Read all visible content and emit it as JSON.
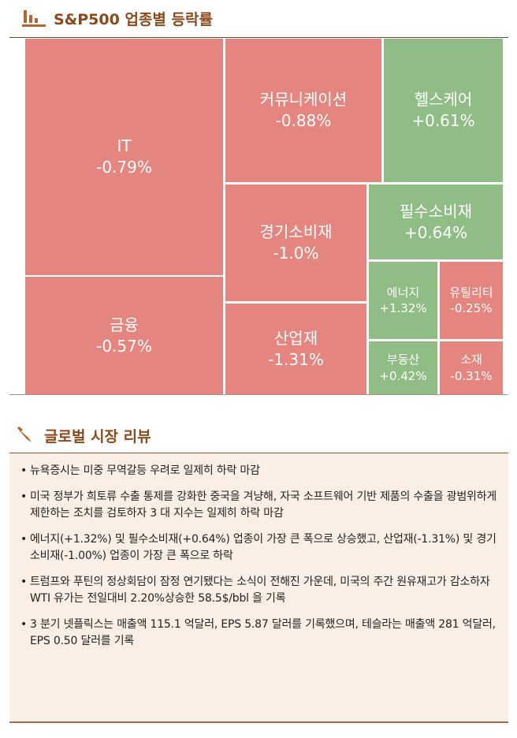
{
  "header": {
    "title": "S&P500 업종별 등락률",
    "icon": "bar-chart-icon"
  },
  "colors": {
    "down": "#e4857f",
    "up": "#8fbd85",
    "accent": "#9b5527"
  },
  "chart_data": {
    "type": "treemap",
    "title": "S&P500 업종별 등락률",
    "categories": [
      "IT",
      "금융",
      "커뮤니케이션",
      "헬스케어",
      "경기소비재",
      "산업재",
      "필수소비재",
      "에너지",
      "유틸리티",
      "부동산",
      "소재"
    ],
    "labels": [
      "-0.79%",
      "-0.57%",
      "-0.88%",
      "+0.61%",
      "-1.0%",
      "-1.31%",
      "+0.64%",
      "+1.32%",
      "-0.25%",
      "+0.42%",
      "-0.31%"
    ],
    "values": [
      -0.79,
      -0.57,
      -0.88,
      0.61,
      -1.0,
      -1.31,
      0.64,
      1.32,
      -0.25,
      0.42,
      -0.31
    ]
  },
  "review": {
    "title": "글로벌 시장 리뷰",
    "icon": "pen-icon",
    "items": [
      "뉴욕증시는 미중 무역갈등 우려로 일제히 하락 마감",
      "미국 정부가 희토류 수출 통제를 강화한 중국을 겨냥해, 자국 소프트웨어 기반 제품의 수출을 광범위하게 제한하는 조치를 검토하자 3 대 지수는 일제히 하락 마감",
      "에너지(+1.32%) 및 필수소비재(+0.64%) 업종이 가장 큰 폭으로 상승했고, 산업재(-1.31%) 및 경기소비재(-1.00%) 업종이 가장 큰 폭으로 하락",
      "트럼프와 푸틴의 정상회담이 잠정 연기됐다는 소식이 전해진 가운데, 미국의 주간 원유재고가 감소하자 WTI 유가는 전일대비 2.20%상승한 58.5$/bbl 을 기록",
      "3 분기 넷플릭스는 매출액 115.1 억달러, EPS 5.87 달러를 기록했으며, 테슬라는 매출액 281 억달러, EPS 0.50 달러를 기록"
    ]
  }
}
